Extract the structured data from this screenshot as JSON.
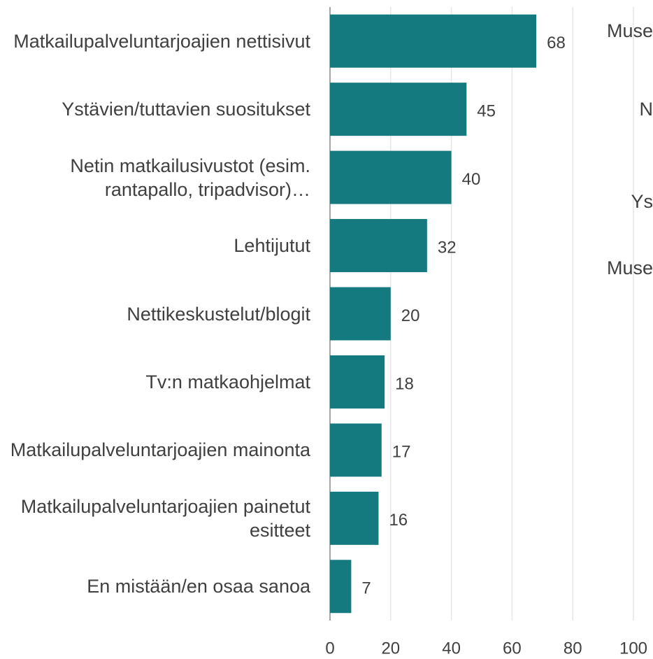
{
  "chart_data": {
    "type": "barh",
    "categories": [
      "Matkailupalveluntarjoajien nettisivut",
      "Ystävien/tuttavien suositukset",
      "Netin matkailusivustot (esim. rantapallo, tripadvisor)…",
      "Lehtijutut",
      "Nettikeskustelut/blogit",
      "Tv:n matkaohjelmat",
      "Matkailupalveluntarjoajien mainonta",
      "Matkailupalveluntarjoajien painetut esitteet",
      "En mistään/en osaa sanoa"
    ],
    "values": [
      68,
      45,
      40,
      32,
      20,
      18,
      17,
      16,
      7
    ],
    "color": "#157a80",
    "xlim": [
      0,
      100
    ],
    "xticks": [
      0,
      20,
      40,
      60,
      80,
      100
    ],
    "grid": true,
    "annotations": [
      "Muse",
      "N",
      "Ys",
      "Muse"
    ]
  }
}
